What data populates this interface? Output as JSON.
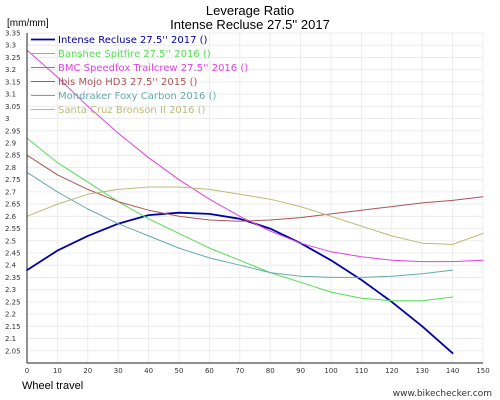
{
  "chart_data": {
    "type": "line",
    "title": "Leverage Ratio",
    "subtitle": "Intense Recluse 27.5'' 2017",
    "ylabel": "[mm/mm]",
    "xlabel": "Wheel travel",
    "watermark": "www.bikechecker.com",
    "xlim": [
      0,
      150
    ],
    "ylim": [
      2.0,
      3.35
    ],
    "x_ticks": [
      0,
      10,
      20,
      30,
      40,
      50,
      60,
      70,
      80,
      90,
      100,
      110,
      120,
      130,
      140,
      150
    ],
    "y_ticks": [
      2.05,
      2.1,
      2.15,
      2.2,
      2.25,
      2.3,
      2.35,
      2.4,
      2.45,
      2.5,
      2.55,
      2.6,
      2.65,
      2.7,
      2.75,
      2.8,
      2.85,
      2.9,
      2.95,
      3.0,
      3.05,
      3.1,
      3.15,
      3.2,
      3.25,
      3.3,
      3.35
    ],
    "grid": true,
    "legend_position": "top-left",
    "series": [
      {
        "name": "Intense Recluse 27.5'' 2017 ()",
        "color": "#0000aa",
        "width": 1.8,
        "x": [
          0,
          10,
          20,
          30,
          40,
          50,
          60,
          70,
          80,
          90,
          100,
          110,
          120,
          130,
          140
        ],
        "y": [
          2.38,
          2.46,
          2.52,
          2.57,
          2.605,
          2.615,
          2.61,
          2.59,
          2.55,
          2.49,
          2.42,
          2.34,
          2.25,
          2.15,
          2.04
        ]
      },
      {
        "name": "Banshee Spitfire 27.5'' 2016 ()",
        "color": "#55dd55",
        "width": 1,
        "x": [
          0,
          10,
          20,
          30,
          40,
          50,
          60,
          70,
          80,
          90,
          100,
          110,
          120,
          130,
          140
        ],
        "y": [
          2.92,
          2.82,
          2.74,
          2.66,
          2.59,
          2.53,
          2.47,
          2.42,
          2.37,
          2.33,
          2.29,
          2.265,
          2.255,
          2.255,
          2.27
        ]
      },
      {
        "name": "BMC Speedfox Trailcrew 27.5'' 2016 ()",
        "color": "#dd44dd",
        "width": 1,
        "x": [
          0,
          10,
          20,
          30,
          40,
          50,
          60,
          70,
          80,
          90,
          100,
          110,
          120,
          130,
          140,
          150
        ],
        "y": [
          3.28,
          3.17,
          3.05,
          2.94,
          2.84,
          2.75,
          2.67,
          2.6,
          2.54,
          2.49,
          2.455,
          2.435,
          2.42,
          2.415,
          2.415,
          2.42
        ]
      },
      {
        "name": "Ibis Mojo HD3 27.5'' 2015 ()",
        "color": "#aa5555",
        "width": 1,
        "x": [
          0,
          10,
          20,
          30,
          40,
          50,
          60,
          70,
          80,
          90,
          100,
          110,
          120,
          130,
          140,
          150
        ],
        "y": [
          2.85,
          2.77,
          2.71,
          2.66,
          2.625,
          2.6,
          2.585,
          2.58,
          2.585,
          2.595,
          2.61,
          2.625,
          2.64,
          2.655,
          2.665,
          2.68
        ]
      },
      {
        "name": "Mondraker Foxy Carbon 2016 ()",
        "color": "#66aaaa",
        "width": 1,
        "x": [
          0,
          10,
          20,
          30,
          40,
          50,
          60,
          70,
          80,
          90,
          100,
          110,
          120,
          130,
          140
        ],
        "y": [
          2.78,
          2.7,
          2.63,
          2.57,
          2.52,
          2.47,
          2.43,
          2.4,
          2.37,
          2.355,
          2.35,
          2.35,
          2.355,
          2.365,
          2.38
        ]
      },
      {
        "name": "Santa Cruz Bronson II 2016 ()",
        "color": "#bbbb77",
        "width": 1,
        "x": [
          0,
          10,
          20,
          30,
          40,
          50,
          60,
          70,
          80,
          90,
          100,
          110,
          120,
          130,
          140,
          150
        ],
        "y": [
          2.6,
          2.65,
          2.69,
          2.71,
          2.72,
          2.72,
          2.71,
          2.69,
          2.67,
          2.64,
          2.6,
          2.56,
          2.52,
          2.49,
          2.485,
          2.53
        ]
      }
    ]
  }
}
